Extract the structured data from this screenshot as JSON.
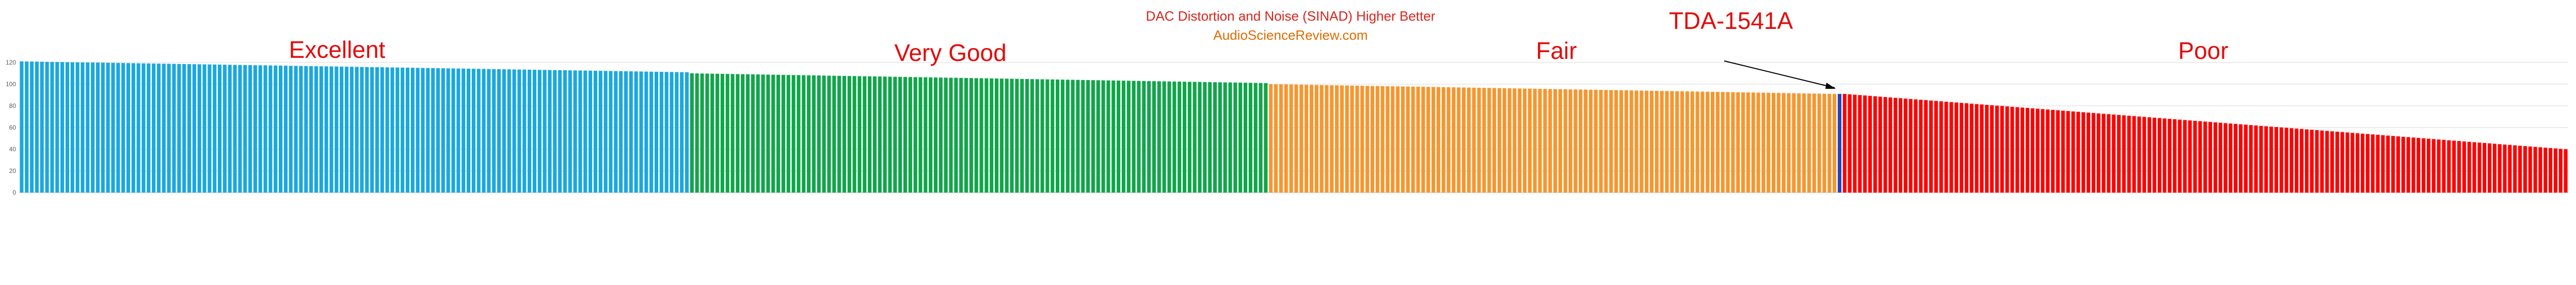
{
  "chart_data": {
    "type": "bar",
    "title": "DAC Distortion and Noise (SINAD) Higher Better",
    "subtitle": "AudioScienceReview.com",
    "ylim": [
      0,
      130
    ],
    "yticks": [
      0,
      20,
      40,
      60,
      80,
      100,
      120
    ],
    "grid": true,
    "colors": {
      "Excellent": "#1aa8e0",
      "Very Good": "#10a64a",
      "Fair": "#f7962e",
      "TDA-1541A": "#2b3fbf",
      "Poor": "#ff0000"
    },
    "groups": [
      {
        "label": "Excellent",
        "count": 132,
        "start": 121,
        "end": 111
      },
      {
        "label": "Very Good",
        "count": 114,
        "start": 110,
        "end": 101
      },
      {
        "label": "Fair",
        "count": 112,
        "start": 100,
        "end": 91
      },
      {
        "label": "TDA-1541A",
        "count": 1,
        "start": 91,
        "end": 91
      },
      {
        "label": "Poor",
        "count": 143,
        "start": 91,
        "end": 40
      }
    ],
    "annotation": {
      "text": "TDA-1541A"
    }
  }
}
